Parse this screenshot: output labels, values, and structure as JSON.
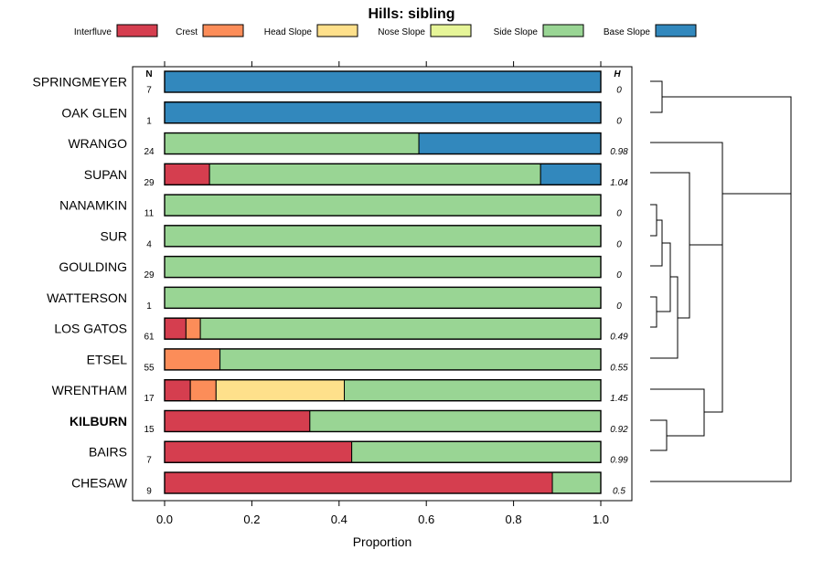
{
  "chart_data": {
    "type": "bar",
    "orientation": "horizontal",
    "stacked": true,
    "title": "Hills: sibling",
    "xlabel": "Proportion",
    "ylabel": "",
    "xlim": [
      0,
      1
    ],
    "xticks": [
      "0.0",
      "0.2",
      "0.4",
      "0.6",
      "0.8",
      "1.0"
    ],
    "n_header": "N",
    "h_header": "H",
    "legend_position": "top",
    "legend": [
      {
        "name": "Interfluve",
        "color": "#d53e4f"
      },
      {
        "name": "Crest",
        "color": "#fc8d59"
      },
      {
        "name": "Head Slope",
        "color": "#fee08b"
      },
      {
        "name": "Nose Slope",
        "color": "#e6f598"
      },
      {
        "name": "Side Slope",
        "color": "#99d594"
      },
      {
        "name": "Base Slope",
        "color": "#3288bd"
      }
    ],
    "rows": [
      {
        "label": "SPRINGMEYER",
        "n": "7",
        "h": "0",
        "bold": false,
        "values": [
          0,
          0,
          0,
          0,
          0,
          1
        ]
      },
      {
        "label": "OAK GLEN",
        "n": "1",
        "h": "0",
        "bold": false,
        "values": [
          0,
          0,
          0,
          0,
          0,
          1
        ]
      },
      {
        "label": "WRANGO",
        "n": "24",
        "h": "0.98",
        "bold": false,
        "values": [
          0,
          0,
          0,
          0,
          0.583,
          0.417
        ]
      },
      {
        "label": "SUPAN",
        "n": "29",
        "h": "1.04",
        "bold": false,
        "values": [
          0.103,
          0,
          0,
          0,
          0.759,
          0.138
        ]
      },
      {
        "label": "NANAMKIN",
        "n": "11",
        "h": "0",
        "bold": false,
        "values": [
          0,
          0,
          0,
          0,
          1,
          0
        ]
      },
      {
        "label": "SUR",
        "n": "4",
        "h": "0",
        "bold": false,
        "values": [
          0,
          0,
          0,
          0,
          1,
          0
        ]
      },
      {
        "label": "GOULDING",
        "n": "29",
        "h": "0",
        "bold": false,
        "values": [
          0,
          0,
          0,
          0,
          1,
          0
        ]
      },
      {
        "label": "WATTERSON",
        "n": "1",
        "h": "0",
        "bold": false,
        "values": [
          0,
          0,
          0,
          0,
          1,
          0
        ]
      },
      {
        "label": "LOS GATOS",
        "n": "61",
        "h": "0.49",
        "bold": false,
        "values": [
          0.049,
          0.033,
          0,
          0,
          0.918,
          0
        ]
      },
      {
        "label": "ETSEL",
        "n": "55",
        "h": "0.55",
        "bold": false,
        "values": [
          0,
          0.127,
          0,
          0,
          0.873,
          0
        ]
      },
      {
        "label": "WRENTHAM",
        "n": "17",
        "h": "1.45",
        "bold": false,
        "values": [
          0.059,
          0.059,
          0.294,
          0,
          0.588,
          0
        ]
      },
      {
        "label": "KILBURN",
        "n": "15",
        "h": "0.92",
        "bold": true,
        "values": [
          0.333,
          0,
          0,
          0,
          0.667,
          0
        ]
      },
      {
        "label": "BAIRS",
        "n": "7",
        "h": "0.99",
        "bold": false,
        "values": [
          0.429,
          0,
          0,
          0,
          0.571,
          0
        ]
      },
      {
        "label": "CHESAW",
        "n": "9",
        "h": "0.5",
        "bold": false,
        "values": [
          0.889,
          0,
          0,
          0,
          0.111,
          0
        ]
      }
    ]
  }
}
